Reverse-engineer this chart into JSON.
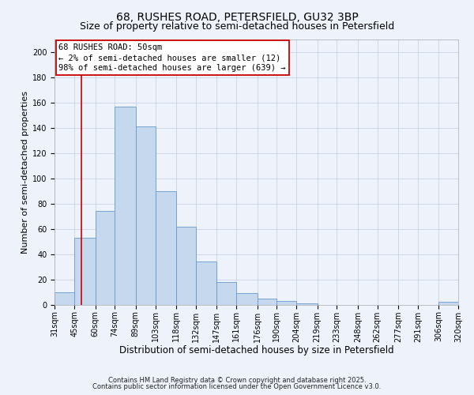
{
  "title": "68, RUSHES ROAD, PETERSFIELD, GU32 3BP",
  "subtitle": "Size of property relative to semi-detached houses in Petersfield",
  "xlabel": "Distribution of semi-detached houses by size in Petersfield",
  "ylabel": "Number of semi-detached properties",
  "bin_labels": [
    "31sqm",
    "45sqm",
    "60sqm",
    "74sqm",
    "89sqm",
    "103sqm",
    "118sqm",
    "132sqm",
    "147sqm",
    "161sqm",
    "176sqm",
    "190sqm",
    "204sqm",
    "219sqm",
    "233sqm",
    "248sqm",
    "262sqm",
    "277sqm",
    "291sqm",
    "306sqm",
    "320sqm"
  ],
  "bin_edges": [
    31,
    45,
    60,
    74,
    89,
    103,
    118,
    132,
    147,
    161,
    176,
    190,
    204,
    219,
    233,
    248,
    262,
    277,
    291,
    306,
    320
  ],
  "bar_values": [
    10,
    53,
    74,
    157,
    141,
    90,
    62,
    34,
    18,
    9,
    5,
    3,
    1,
    0,
    0,
    0,
    0,
    0,
    0,
    2
  ],
  "bar_color": "#c5d8ee",
  "bar_edge_color": "#6699cc",
  "reference_line_x": 50,
  "reference_line_color": "#cc0000",
  "ylim": [
    0,
    210
  ],
  "yticks": [
    0,
    20,
    40,
    60,
    80,
    100,
    120,
    140,
    160,
    180,
    200
  ],
  "annotation_title": "68 RUSHES ROAD: 50sqm",
  "annotation_line1": "← 2% of semi-detached houses are smaller (12)",
  "annotation_line2": "98% of semi-detached houses are larger (639) →",
  "annotation_box_color": "#ffffff",
  "annotation_box_edge": "#cc0000",
  "footer1": "Contains HM Land Registry data © Crown copyright and database right 2025.",
  "footer2": "Contains public sector information licensed under the Open Government Licence v3.0.",
  "background_color": "#eef2fa",
  "grid_color": "#c8d4e8",
  "title_fontsize": 10,
  "subtitle_fontsize": 9,
  "xlabel_fontsize": 8.5,
  "ylabel_fontsize": 8,
  "tick_fontsize": 7,
  "annotation_fontsize": 7.5,
  "footer_fontsize": 6
}
